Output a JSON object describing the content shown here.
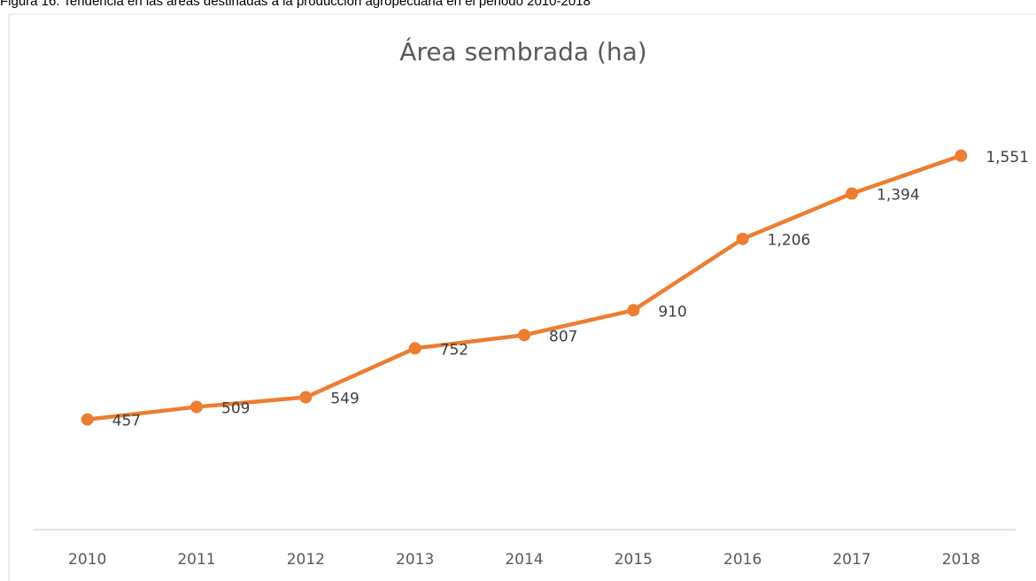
{
  "caption": "Figura 16. Tendencia en las áreas destinadas a la producción agropecuaria en el periodo 2010-2018",
  "chart_data": {
    "type": "line",
    "title": "Área sembrada (ha)",
    "categories": [
      "2010",
      "2011",
      "2012",
      "2013",
      "2014",
      "2015",
      "2016",
      "2017",
      "2018"
    ],
    "values": [
      457,
      509,
      549,
      752,
      807,
      910,
      1206,
      1394,
      1551
    ],
    "value_labels": [
      "457",
      "509",
      "549",
      "752",
      "807",
      "910",
      "1,206",
      "1,394",
      "1,551"
    ],
    "color": "#ed7d31",
    "ylim": [
      0,
      1800
    ]
  }
}
